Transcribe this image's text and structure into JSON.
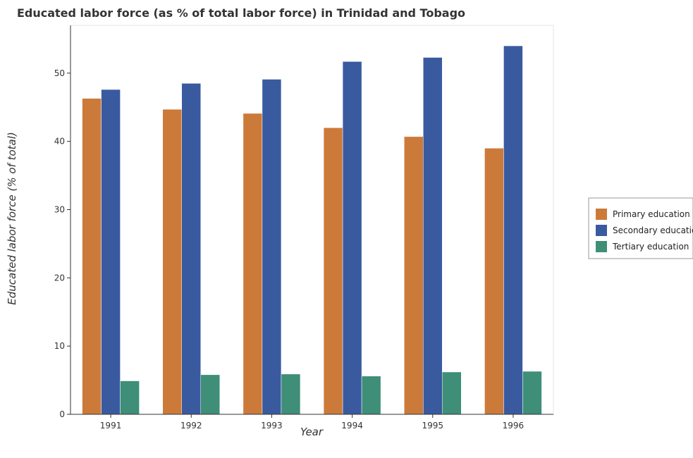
{
  "chart_data": {
    "type": "bar",
    "title": "Educated labor force (as % of total labor force) in Trinidad and Tobago",
    "xlabel": "Year",
    "ylabel": "Educated labor force (% of total)",
    "categories": [
      "1991",
      "1992",
      "1993",
      "1994",
      "1995",
      "1996"
    ],
    "ylim": [
      0,
      57
    ],
    "yticks": [
      0,
      10,
      20,
      30,
      40,
      50
    ],
    "grid": false,
    "legend_position": "right",
    "series": [
      {
        "name": "Primary education",
        "color": "#cc7a3a",
        "values": [
          46.3,
          44.7,
          44.1,
          42.0,
          40.7,
          39.0
        ]
      },
      {
        "name": "Secondary education",
        "color": "#3a5aa0",
        "values": [
          47.6,
          48.5,
          49.1,
          51.7,
          52.3,
          54.0
        ]
      },
      {
        "name": "Tertiary education",
        "color": "#3e8e78",
        "values": [
          4.9,
          5.8,
          5.9,
          5.6,
          6.2,
          6.3
        ]
      }
    ]
  }
}
